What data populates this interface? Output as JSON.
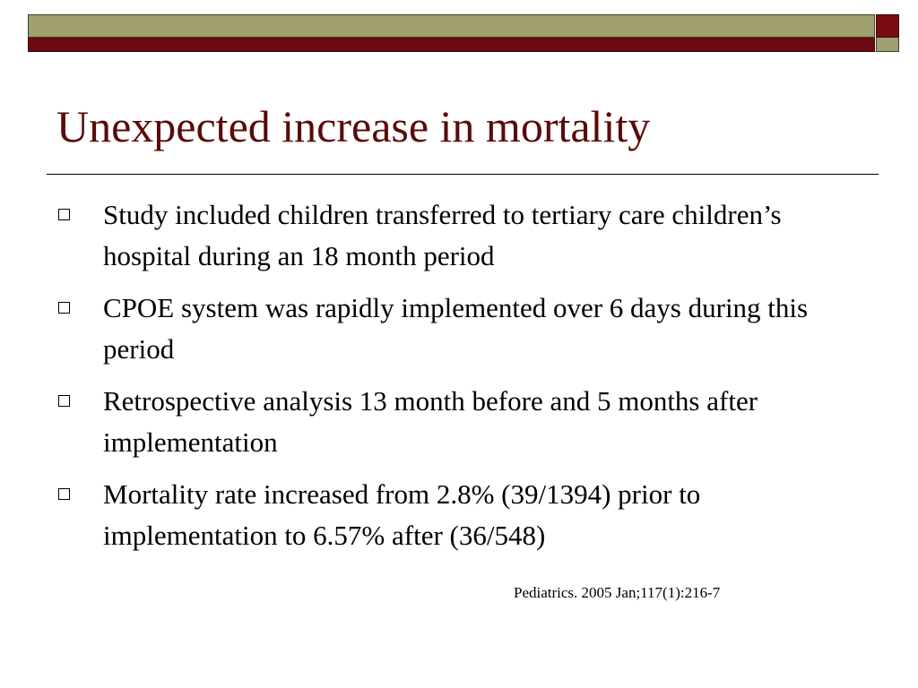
{
  "slide": {
    "title": "Unexpected increase in mortality",
    "bullets": [
      "Study included children transferred to tertiary care children’s hospital during an 18 month period",
      "CPOE system was rapidly implemented over 6 days during this period",
      "Retrospective analysis 13 month before and 5 months after implementation",
      "Mortality rate increased from 2.8% (39/1394) prior to implementation to 6.57% after (36/548)"
    ],
    "citation": "Pediatrics. 2005 Jan;117(1):216-7"
  },
  "colors": {
    "accent_olive": "#a0a070",
    "accent_maroon": "#6b0a10",
    "title_color": "#5a0a0a"
  }
}
